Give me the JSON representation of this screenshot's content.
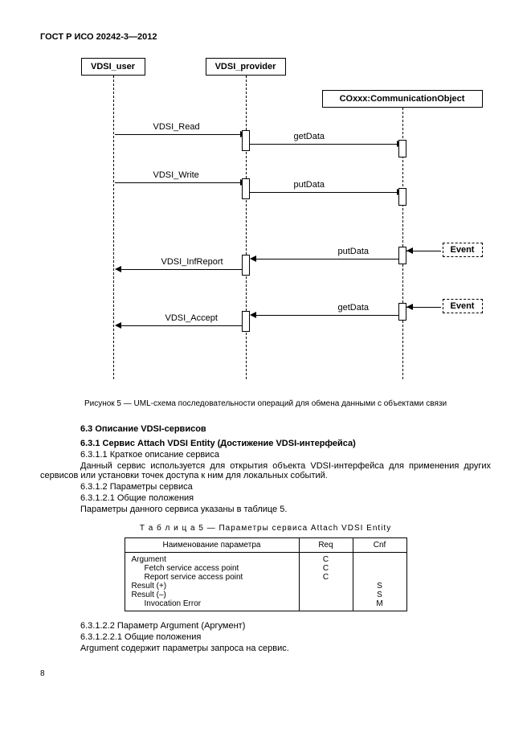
{
  "header": "ГОСТ Р ИСО 20242-3—2012",
  "diagram": {
    "participants": {
      "user": "VDSI_user",
      "provider": "VDSI_provider",
      "co": "COxxx:CommunicationObject",
      "event1": "Event",
      "event2": "Event"
    },
    "messages": {
      "read": "VDSI_Read",
      "getData1": "getData",
      "write": "VDSI_Write",
      "putData1": "putData",
      "putData2": "putData",
      "infReport": "VDSI_InfReport",
      "getData2": "getData",
      "accept": "VDSI_Accept"
    }
  },
  "figure_caption": "Рисунок 5 — UML-схема последовательности операций для обмена данными с объектами связи",
  "section_6_3": "6.3  Описание VDSI-сервисов",
  "section_6_3_1": "6.3.1  Сервис Attach VDSI Entity (Достижение VDSI-интерфейса)",
  "section_6_3_1_1": "6.3.1.1  Краткое описание сервиса",
  "para_service_desc": "Данный сервис используется для открытия объекта VDSI-интерфейса для применения других сервисов или установки точек доступа к ним для локальных событий.",
  "section_6_3_1_2": "6.3.1.2  Параметры сервиса",
  "section_6_3_1_2_1": "6.3.1.2.1  Общие положения",
  "para_params": "Параметры данного сервиса указаны в таблице 5.",
  "table_caption": "Т а б л и ц а   5 — Параметры сервиса Attach VDSI Entity",
  "table": {
    "headers": {
      "name": "Наименование параметра",
      "req": "Req",
      "cnf": "Cnf"
    },
    "rows": [
      {
        "name": "Argument",
        "indent": 0,
        "req": "C",
        "cnf": ""
      },
      {
        "name": "Fetch service access point",
        "indent": 1,
        "req": "C",
        "cnf": ""
      },
      {
        "name": "Report service access point",
        "indent": 1,
        "req": "C",
        "cnf": ""
      },
      {
        "name": "Result (+)",
        "indent": 0,
        "req": "",
        "cnf": "S"
      },
      {
        "name": "Result (–)",
        "indent": 0,
        "req": "",
        "cnf": "S"
      },
      {
        "name": "Invocation Error",
        "indent": 1,
        "req": "",
        "cnf": "M"
      }
    ]
  },
  "section_6_3_1_2_2": "6.3.1.2.2  Параметр Argument (Аргумент)",
  "section_6_3_1_2_2_1": "6.3.1.2.2.1  Общие положения",
  "para_argument": "Argument содержит параметры запроса на сервис.",
  "page_number": "8"
}
